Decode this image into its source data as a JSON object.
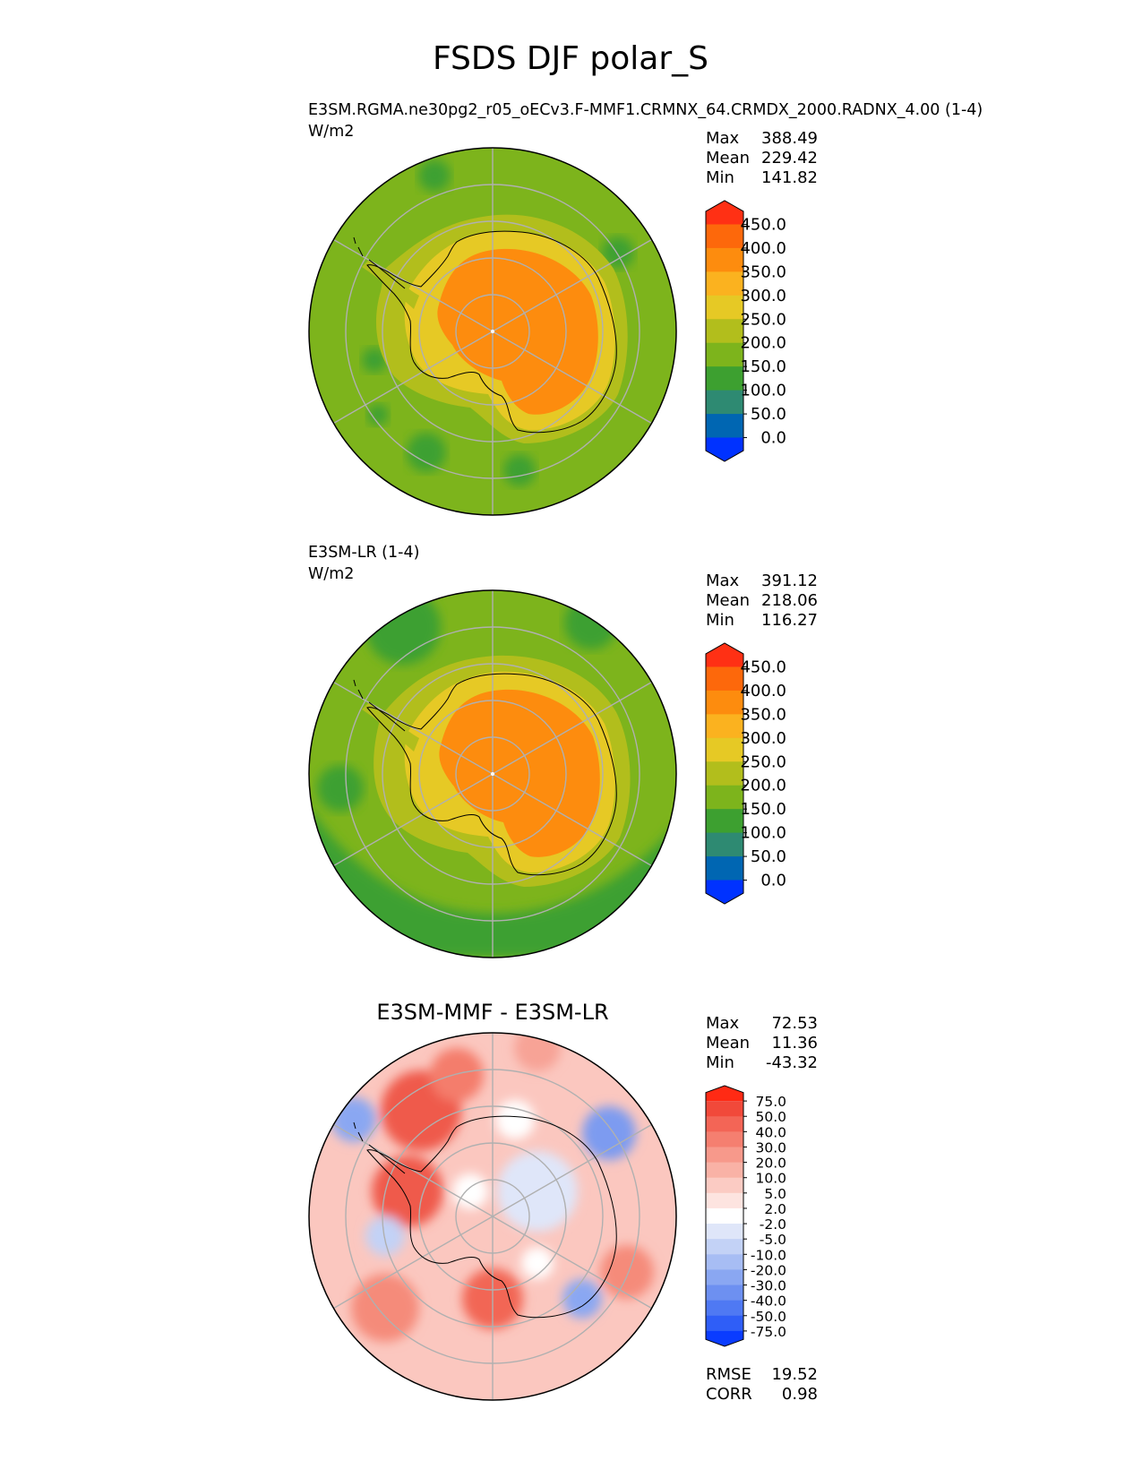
{
  "figure": {
    "title": "FSDS DJF polar_S"
  },
  "chart_data": [
    {
      "type": "heatmap",
      "projection": "south-polar-stereographic",
      "title": "E3SM.RGMA.ne30pg2_r05_oECv3.F-MMF1.CRMNX_64.CRMDX_2000.RADNX_4.00 (1-4)",
      "units": "W/m2",
      "stats": [
        {
          "label": "Max",
          "value": "388.49"
        },
        {
          "label": "Mean",
          "value": "229.42"
        },
        {
          "label": "Min",
          "value": "141.82"
        }
      ],
      "field": {
        "ocean": 175,
        "ocean_low": 130,
        "coast": 240,
        "ice_edge": 280,
        "interior": 370
      },
      "colorbar": {
        "colors": [
          "#0032ff",
          "#0066b2",
          "#2e8a72",
          "#3da030",
          "#7db41c",
          "#b2be1c",
          "#e6c925",
          "#fbb21f",
          "#fd8c0e",
          "#fd680b",
          "#ff3014"
        ],
        "ticks": [
          "450.0",
          "400.0",
          "350.0",
          "300.0",
          "250.0",
          "200.0",
          "150.0",
          "100.0",
          "50.0",
          "0.0"
        ],
        "extend": "both"
      }
    },
    {
      "type": "heatmap",
      "projection": "south-polar-stereographic",
      "title": "E3SM-LR (1-4)",
      "units": "W/m2",
      "stats": [
        {
          "label": "Max",
          "value": "391.12"
        },
        {
          "label": "Mean",
          "value": "218.06"
        },
        {
          "label": "Min",
          "value": "116.27"
        }
      ],
      "field": {
        "ocean": 150,
        "ocean_low": 120,
        "coast": 230,
        "ice_edge": 270,
        "interior": 365
      },
      "colorbar": {
        "colors": [
          "#0032ff",
          "#0066b2",
          "#2e8a72",
          "#3da030",
          "#7db41c",
          "#b2be1c",
          "#e6c925",
          "#fbb21f",
          "#fd8c0e",
          "#fd680b",
          "#ff3014"
        ],
        "ticks": [
          "450.0",
          "400.0",
          "350.0",
          "300.0",
          "250.0",
          "200.0",
          "150.0",
          "100.0",
          "50.0",
          "0.0"
        ],
        "extend": "both"
      }
    },
    {
      "type": "heatmap",
      "projection": "south-polar-stereographic",
      "title": "E3SM-MMF - E3SM-LR",
      "units": "",
      "stats": [
        {
          "label": "Max",
          "value": "72.53"
        },
        {
          "label": "Mean",
          "value": "11.36"
        },
        {
          "label": "Min",
          "value": "-43.32"
        }
      ],
      "metrics": [
        {
          "label": "RMSE",
          "value": "19.52"
        },
        {
          "label": "CORR",
          "value": "0.98"
        }
      ],
      "colorbar": {
        "colors": [
          "#0a3cff",
          "#2f5ef7",
          "#4f79f3",
          "#6d90f1",
          "#8aa7f2",
          "#a7bdf4",
          "#c3d2f6",
          "#dfe6f9",
          "#ffffff",
          "#fde4e0",
          "#fbcbc3",
          "#f9b2a6",
          "#f7998b",
          "#f57f70",
          "#f36556",
          "#f1493a",
          "#ff2a14"
        ],
        "ticks": [
          "75.0",
          "50.0",
          "40.0",
          "30.0",
          "20.0",
          "10.0",
          "5.0",
          "2.0",
          "-2.0",
          "-5.0",
          "-10.0",
          "-20.0",
          "-30.0",
          "-40.0",
          "-50.0",
          "-75.0"
        ],
        "extend": "both"
      }
    }
  ]
}
